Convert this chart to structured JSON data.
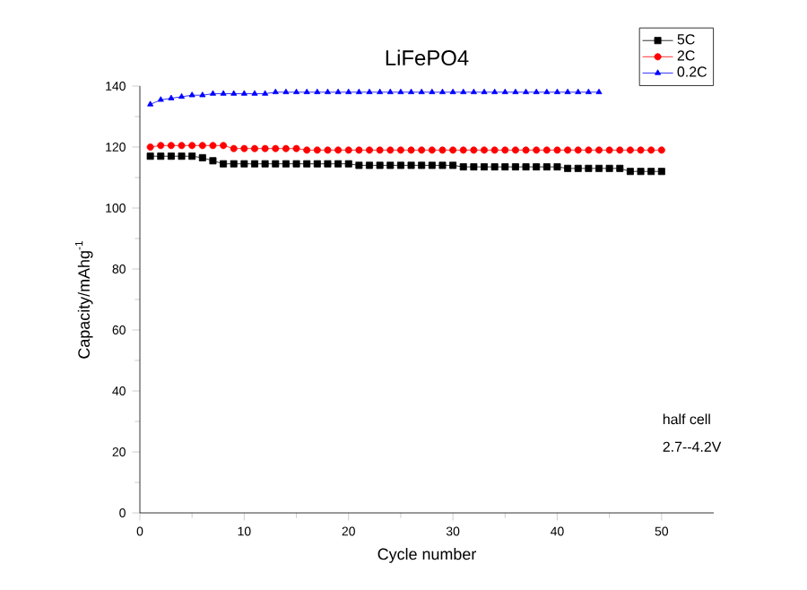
{
  "chart_data": {
    "type": "line",
    "title": "LiFePO4",
    "xlabel": "Cycle number",
    "ylabel": "Capacity/mAhg$^{-1}$",
    "x": [
      1,
      2,
      3,
      4,
      5,
      6,
      7,
      8,
      9,
      10,
      11,
      12,
      13,
      14,
      15,
      16,
      17,
      18,
      19,
      20,
      21,
      22,
      23,
      24,
      25,
      26,
      27,
      28,
      29,
      30,
      31,
      32,
      33,
      34,
      35,
      36,
      37,
      38,
      39,
      40,
      41,
      42,
      43,
      44,
      45,
      46,
      47,
      48,
      49,
      50
    ],
    "xlim": [
      0,
      55
    ],
    "ylim": [
      0,
      140
    ],
    "xticks": [
      0,
      10,
      20,
      30,
      40,
      50
    ],
    "yticks": [
      0,
      20,
      40,
      60,
      80,
      100,
      120,
      140
    ],
    "legend": "top right",
    "annotations": [
      "half cell",
      "2.7--4.2V"
    ],
    "series": [
      {
        "name": "5C",
        "color": "#000000",
        "marker": "square",
        "values": [
          117,
          117,
          117,
          117,
          117,
          116.5,
          115.5,
          114.5,
          114.5,
          114.5,
          114.5,
          114.5,
          114.5,
          114.5,
          114.5,
          114.5,
          114.5,
          114.5,
          114.5,
          114.5,
          114,
          114,
          114,
          114,
          114,
          114,
          114,
          114,
          114,
          114,
          113.5,
          113.5,
          113.5,
          113.5,
          113.5,
          113.5,
          113.5,
          113.5,
          113.5,
          113.5,
          113,
          113,
          113,
          113,
          113,
          113,
          112,
          112,
          112,
          112
        ]
      },
      {
        "name": "2C",
        "color": "#ff0000",
        "marker": "circle",
        "values": [
          120,
          120.5,
          120.5,
          120.5,
          120.5,
          120.5,
          120.5,
          120.5,
          119.5,
          119.5,
          119.5,
          119.5,
          119.5,
          119.5,
          119.5,
          119,
          119,
          119,
          119,
          119,
          119,
          119,
          119,
          119,
          119,
          119,
          119,
          119,
          119,
          119,
          119,
          119,
          119,
          119,
          119,
          119,
          119,
          119,
          119,
          119,
          119,
          119,
          119,
          119,
          119,
          119,
          119,
          119,
          119,
          119
        ]
      },
      {
        "name": "0.2C",
        "color": "#0000ff",
        "marker": "triangle",
        "values": [
          134,
          135.5,
          136,
          136.5,
          137,
          137,
          137.5,
          137.5,
          137.5,
          137.5,
          137.5,
          137.5,
          138,
          138,
          138,
          138,
          138,
          138,
          138,
          138,
          138,
          138,
          138,
          138,
          138,
          138,
          138,
          138,
          138,
          138,
          138,
          138,
          138,
          138,
          138,
          138,
          138,
          138,
          138,
          138,
          138,
          138,
          138,
          138,
          null,
          null,
          null,
          null,
          null,
          null
        ]
      }
    ]
  }
}
